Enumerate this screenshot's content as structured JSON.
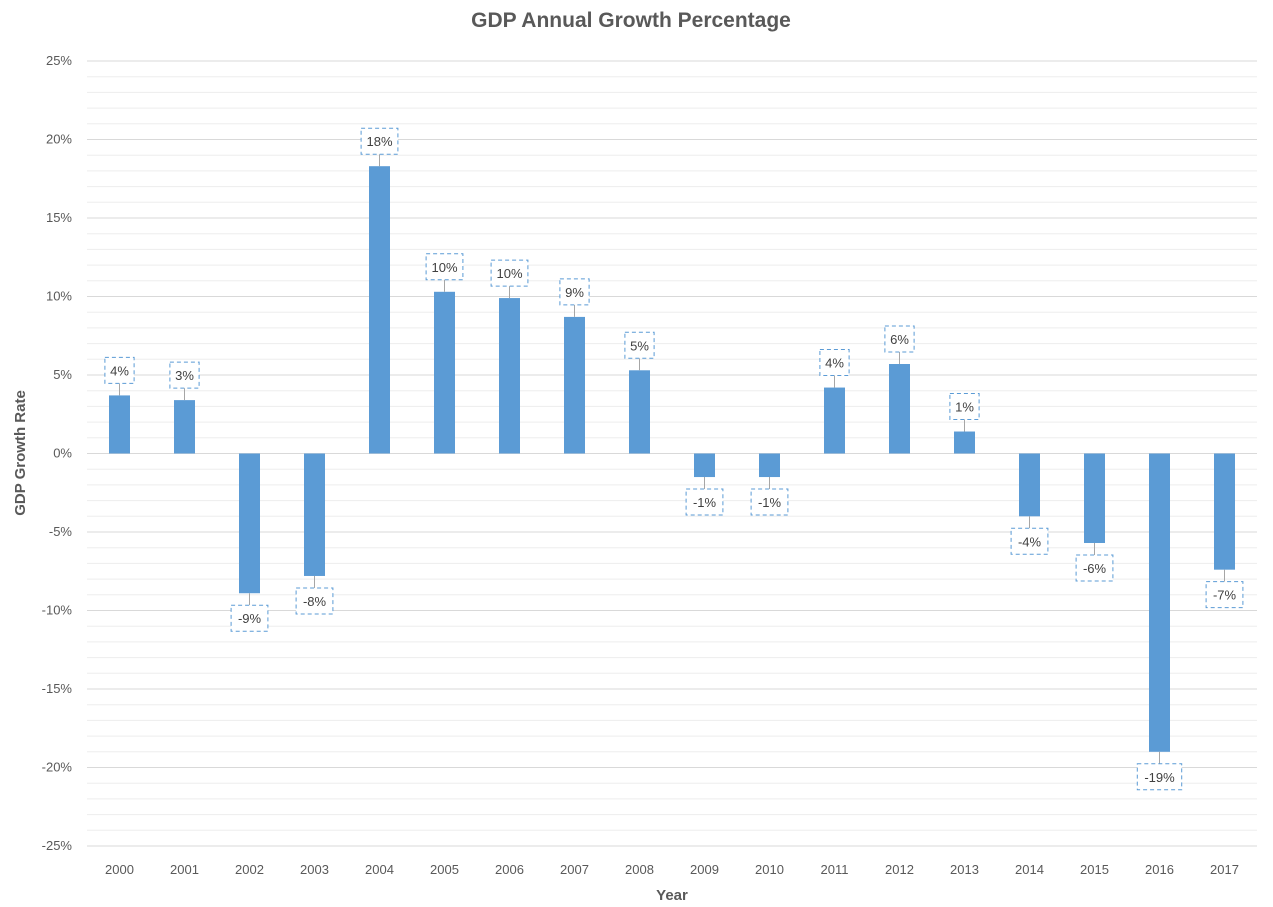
{
  "chart_data": {
    "type": "bar",
    "title": "GDP Annual Growth Percentage",
    "xlabel": "Year",
    "ylabel": "GDP Growth Rate",
    "categories": [
      "2000",
      "2001",
      "2002",
      "2003",
      "2004",
      "2005",
      "2006",
      "2007",
      "2008",
      "2009",
      "2010",
      "2011",
      "2012",
      "2013",
      "2014",
      "2015",
      "2016",
      "2017"
    ],
    "values": [
      3.7,
      3.4,
      -8.9,
      -7.8,
      18.3,
      10.3,
      9.9,
      8.7,
      5.3,
      -1.5,
      -1.5,
      4.2,
      5.7,
      1.4,
      -4.0,
      -5.7,
      -19.0,
      -7.4
    ],
    "data_labels": [
      "4%",
      "3%",
      "-9%",
      "-8%",
      "18%",
      "10%",
      "10%",
      "9%",
      "5%",
      "-1%",
      "-1%",
      "4%",
      "6%",
      "1%",
      "-4%",
      "-6%",
      "-19%",
      "-7%"
    ],
    "ylim": [
      -25,
      25
    ],
    "yticks": [
      25,
      20,
      15,
      10,
      5,
      0,
      -5,
      -10,
      -15,
      -20,
      -25
    ],
    "ytick_labels": [
      "25%",
      "20%",
      "15%",
      "10%",
      "5%",
      "0%",
      "-5%",
      "-10%",
      "-15%",
      "-20%",
      "-25%"
    ],
    "grid": true,
    "legend": "none",
    "colors": {
      "bar": "#5b9bd5",
      "gridline_major": "#d9d9d9",
      "gridline_minor": "#ededed",
      "label_border": "#5b9bd5",
      "text": "#595959"
    }
  }
}
